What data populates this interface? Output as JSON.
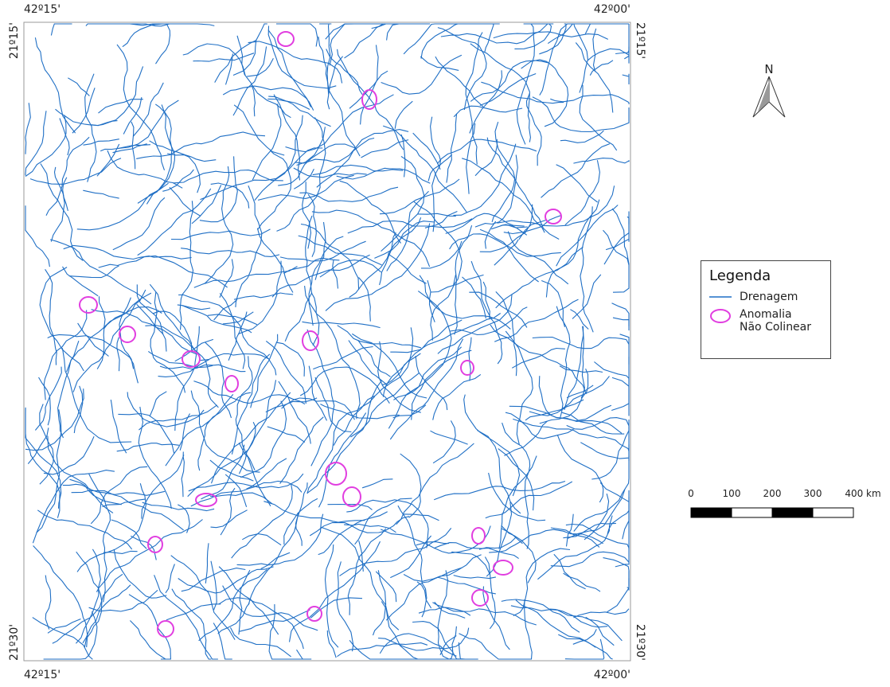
{
  "frame_labels": {
    "top": [
      "42º15'",
      "42º00'"
    ],
    "bottom": [
      "42º15'",
      "42º00'"
    ],
    "left": [
      "21º15'",
      "21º30'"
    ],
    "right": [
      "21º15'",
      "21º30'"
    ]
  },
  "north_arrow": {
    "label": "N"
  },
  "legend": {
    "title": "Legenda",
    "items": [
      {
        "label": "Drenagem"
      },
      {
        "label": "Anomalia Não Colinear"
      }
    ]
  },
  "scale_bar": {
    "labels": [
      "0",
      "100",
      "200",
      "300",
      "400 km"
    ]
  }
}
